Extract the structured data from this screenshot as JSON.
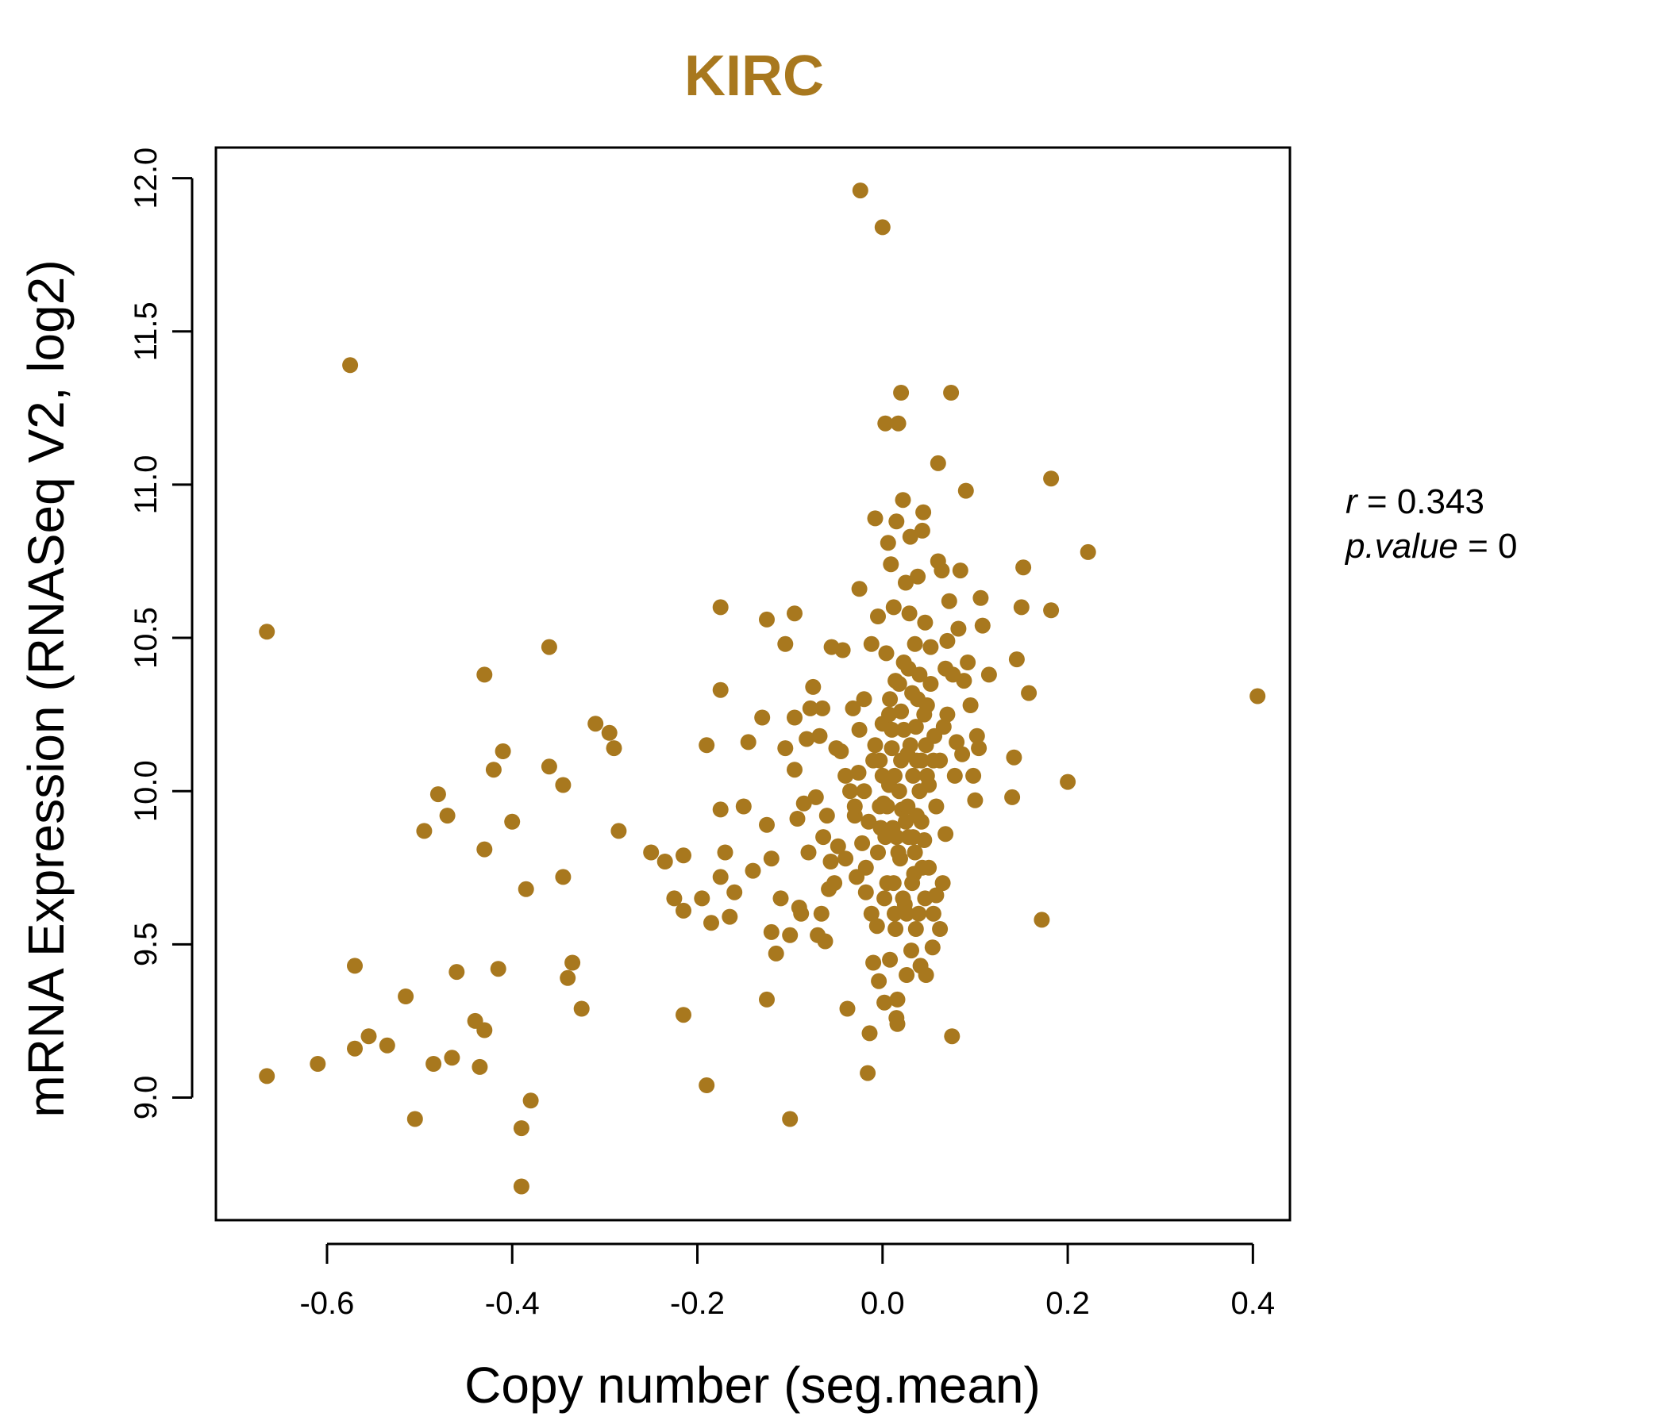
{
  "chart_data": {
    "type": "scatter",
    "title": "KIRC",
    "xlabel": "Copy number (seg.mean)",
    "ylabel": "mRNA Expression (RNASeq V2, log2)",
    "xlim": [
      -0.72,
      0.44
    ],
    "ylim": [
      8.6,
      12.1
    ],
    "x_ticks": [
      -0.6,
      -0.4,
      -0.2,
      0.0,
      0.2,
      0.4
    ],
    "x_tick_labels": [
      "-0.6",
      "-0.4",
      "-0.2",
      "0.0",
      "0.2",
      "0.4"
    ],
    "y_ticks": [
      9.0,
      9.5,
      10.0,
      10.5,
      11.0,
      11.5,
      12.0
    ],
    "y_tick_labels": [
      "9.0",
      "9.5",
      "10.0",
      "10.5",
      "11.0",
      "11.5",
      "12.0"
    ],
    "grid": false,
    "color": "#A8781E",
    "stats": {
      "r_label": "r",
      "r_value": "0.343",
      "p_label": "p.value",
      "p_value": "0"
    },
    "points": [
      [
        -0.665,
        10.52
      ],
      [
        -0.665,
        9.07
      ],
      [
        -0.61,
        9.11
      ],
      [
        -0.575,
        11.39
      ],
      [
        -0.57,
        9.43
      ],
      [
        -0.57,
        9.16
      ],
      [
        -0.555,
        9.2
      ],
      [
        -0.535,
        9.17
      ],
      [
        -0.515,
        9.33
      ],
      [
        -0.505,
        8.93
      ],
      [
        -0.495,
        9.87
      ],
      [
        -0.485,
        9.11
      ],
      [
        -0.48,
        9.99
      ],
      [
        -0.47,
        9.92
      ],
      [
        -0.465,
        9.13
      ],
      [
        -0.46,
        9.41
      ],
      [
        -0.44,
        9.25
      ],
      [
        -0.435,
        9.1
      ],
      [
        -0.43,
        10.38
      ],
      [
        -0.43,
        9.81
      ],
      [
        -0.43,
        9.22
      ],
      [
        -0.42,
        10.07
      ],
      [
        -0.415,
        9.42
      ],
      [
        -0.41,
        10.13
      ],
      [
        -0.4,
        9.9
      ],
      [
        -0.39,
        8.9
      ],
      [
        -0.39,
        8.71
      ],
      [
        -0.385,
        9.68
      ],
      [
        -0.38,
        8.99
      ],
      [
        -0.36,
        10.47
      ],
      [
        -0.36,
        10.08
      ],
      [
        -0.345,
        10.02
      ],
      [
        -0.345,
        9.72
      ],
      [
        -0.34,
        9.39
      ],
      [
        -0.335,
        9.44
      ],
      [
        -0.325,
        9.29
      ],
      [
        -0.31,
        10.22
      ],
      [
        -0.295,
        10.19
      ],
      [
        -0.29,
        10.14
      ],
      [
        -0.285,
        9.87
      ],
      [
        -0.25,
        9.8
      ],
      [
        -0.235,
        9.77
      ],
      [
        -0.225,
        9.65
      ],
      [
        -0.215,
        9.61
      ],
      [
        -0.215,
        9.79
      ],
      [
        -0.215,
        9.27
      ],
      [
        -0.195,
        9.65
      ],
      [
        -0.19,
        9.04
      ],
      [
        -0.19,
        10.15
      ],
      [
        -0.185,
        9.57
      ],
      [
        -0.175,
        10.6
      ],
      [
        -0.175,
        10.33
      ],
      [
        -0.175,
        9.94
      ],
      [
        -0.175,
        9.72
      ],
      [
        -0.17,
        9.8
      ],
      [
        -0.165,
        9.59
      ],
      [
        -0.16,
        9.67
      ],
      [
        -0.15,
        9.95
      ],
      [
        -0.145,
        10.16
      ],
      [
        -0.14,
        9.74
      ],
      [
        -0.13,
        10.24
      ],
      [
        -0.125,
        10.56
      ],
      [
        -0.125,
        9.89
      ],
      [
        -0.125,
        9.32
      ],
      [
        -0.12,
        9.78
      ],
      [
        -0.12,
        9.54
      ],
      [
        -0.115,
        9.47
      ],
      [
        -0.11,
        9.65
      ],
      [
        -0.105,
        10.14
      ],
      [
        -0.105,
        10.48
      ],
      [
        -0.1,
        9.53
      ],
      [
        -0.1,
        8.93
      ],
      [
        -0.095,
        10.58
      ],
      [
        -0.095,
        10.07
      ],
      [
        -0.095,
        10.24
      ],
      [
        -0.092,
        9.91
      ],
      [
        -0.09,
        9.62
      ],
      [
        -0.088,
        9.6
      ],
      [
        -0.085,
        9.96
      ],
      [
        -0.082,
        10.17
      ],
      [
        -0.08,
        9.8
      ],
      [
        -0.078,
        10.27
      ],
      [
        -0.075,
        10.34
      ],
      [
        -0.072,
        9.98
      ],
      [
        -0.07,
        9.53
      ],
      [
        -0.068,
        10.18
      ],
      [
        -0.066,
        9.6
      ],
      [
        -0.065,
        10.27
      ],
      [
        -0.064,
        9.85
      ],
      [
        -0.062,
        9.51
      ],
      [
        -0.06,
        9.92
      ],
      [
        -0.058,
        9.68
      ],
      [
        -0.056,
        9.77
      ],
      [
        -0.055,
        10.47
      ],
      [
        -0.052,
        9.7
      ],
      [
        -0.05,
        10.14
      ],
      [
        -0.048,
        9.82
      ],
      [
        -0.045,
        10.13
      ],
      [
        -0.043,
        10.46
      ],
      [
        -0.04,
        9.78
      ],
      [
        -0.038,
        9.29
      ],
      [
        -0.035,
        10.0
      ],
      [
        -0.032,
        10.27
      ],
      [
        -0.03,
        9.92
      ],
      [
        -0.028,
        9.72
      ],
      [
        -0.026,
        10.06
      ],
      [
        -0.025,
        10.66
      ],
      [
        -0.024,
        11.96
      ],
      [
        -0.022,
        9.83
      ],
      [
        -0.02,
        10.3
      ],
      [
        -0.018,
        9.67
      ],
      [
        -0.016,
        9.08
      ],
      [
        -0.014,
        9.21
      ],
      [
        -0.012,
        10.48
      ],
      [
        -0.01,
        9.44
      ],
      [
        -0.008,
        10.89
      ],
      [
        -0.006,
        9.56
      ],
      [
        -0.005,
        10.57
      ],
      [
        -0.004,
        9.38
      ],
      [
        -0.003,
        10.1
      ],
      [
        -0.002,
        9.88
      ],
      [
        0.0,
        11.84
      ],
      [
        0.0,
        10.22
      ],
      [
        0.001,
        9.96
      ],
      [
        0.002,
        9.31
      ],
      [
        0.003,
        11.2
      ],
      [
        0.004,
        10.45
      ],
      [
        0.005,
        9.7
      ],
      [
        0.006,
        10.81
      ],
      [
        0.007,
        10.02
      ],
      [
        0.008,
        9.45
      ],
      [
        0.009,
        10.74
      ],
      [
        0.01,
        10.14
      ],
      [
        0.011,
        9.88
      ],
      [
        0.012,
        10.6
      ],
      [
        0.013,
        9.6
      ],
      [
        0.014,
        10.36
      ],
      [
        0.015,
        10.88
      ],
      [
        0.015,
        9.26
      ],
      [
        0.016,
        9.32
      ],
      [
        0.016,
        9.24
      ],
      [
        0.017,
        11.2
      ],
      [
        0.018,
        10.0
      ],
      [
        0.019,
        9.78
      ],
      [
        0.02,
        11.3
      ],
      [
        0.02,
        10.26
      ],
      [
        0.021,
        9.94
      ],
      [
        0.022,
        10.95
      ],
      [
        0.023,
        10.42
      ],
      [
        0.024,
        9.63
      ],
      [
        0.025,
        10.68
      ],
      [
        0.026,
        9.4
      ],
      [
        0.027,
        10.12
      ],
      [
        0.028,
        9.85
      ],
      [
        0.029,
        10.58
      ],
      [
        0.03,
        10.83
      ],
      [
        0.031,
        9.48
      ],
      [
        0.032,
        10.32
      ],
      [
        0.033,
        10.05
      ],
      [
        0.034,
        9.73
      ],
      [
        0.035,
        10.48
      ],
      [
        0.036,
        10.21
      ],
      [
        0.037,
        9.92
      ],
      [
        0.038,
        10.7
      ],
      [
        0.039,
        9.6
      ],
      [
        0.04,
        10.38
      ],
      [
        0.041,
        9.43
      ],
      [
        0.042,
        10.1
      ],
      [
        0.043,
        10.85
      ],
      [
        0.044,
        10.91
      ],
      [
        0.045,
        9.84
      ],
      [
        0.046,
        10.55
      ],
      [
        0.047,
        9.4
      ],
      [
        0.048,
        10.28
      ],
      [
        0.05,
        10.02
      ],
      [
        0.052,
        10.47
      ],
      [
        0.054,
        9.49
      ],
      [
        0.056,
        10.18
      ],
      [
        0.058,
        9.66
      ],
      [
        0.06,
        11.07
      ],
      [
        0.06,
        10.75
      ],
      [
        0.062,
        9.55
      ],
      [
        0.064,
        10.72
      ],
      [
        0.066,
        10.21
      ],
      [
        0.068,
        9.86
      ],
      [
        0.07,
        10.49
      ],
      [
        0.072,
        10.62
      ],
      [
        0.074,
        11.3
      ],
      [
        0.075,
        9.2
      ],
      [
        0.076,
        10.38
      ],
      [
        0.078,
        10.05
      ],
      [
        0.08,
        10.16
      ],
      [
        0.082,
        10.53
      ],
      [
        0.084,
        10.72
      ],
      [
        0.086,
        10.12
      ],
      [
        0.088,
        10.36
      ],
      [
        0.09,
        10.98
      ],
      [
        0.092,
        10.42
      ],
      [
        0.095,
        10.28
      ],
      [
        0.098,
        10.05
      ],
      [
        0.1,
        9.97
      ],
      [
        0.102,
        10.18
      ],
      [
        0.104,
        10.14
      ],
      [
        0.106,
        10.63
      ],
      [
        0.108,
        10.54
      ],
      [
        0.115,
        10.38
      ],
      [
        0.14,
        9.98
      ],
      [
        0.142,
        10.11
      ],
      [
        0.145,
        10.43
      ],
      [
        0.15,
        10.6
      ],
      [
        0.152,
        10.73
      ],
      [
        0.158,
        10.32
      ],
      [
        0.172,
        9.58
      ],
      [
        0.182,
        11.02
      ],
      [
        0.182,
        10.59
      ],
      [
        0.2,
        10.03
      ],
      [
        0.222,
        10.78
      ],
      [
        0.405,
        10.31
      ],
      [
        -0.02,
        10.0
      ],
      [
        -0.015,
        9.9
      ],
      [
        -0.01,
        10.1
      ],
      [
        -0.005,
        9.8
      ],
      [
        0.0,
        10.05
      ],
      [
        0.005,
        9.95
      ],
      [
        0.01,
        10.2
      ],
      [
        0.015,
        9.85
      ],
      [
        0.02,
        10.1
      ],
      [
        0.025,
        9.9
      ],
      [
        0.03,
        10.15
      ],
      [
        0.035,
        9.8
      ],
      [
        0.04,
        10.0
      ],
      [
        0.045,
        10.25
      ],
      [
        0.05,
        9.75
      ],
      [
        0.055,
        10.1
      ],
      [
        -0.025,
        10.2
      ],
      [
        -0.018,
        9.75
      ],
      [
        0.008,
        10.3
      ],
      [
        0.012,
        9.7
      ],
      [
        0.018,
        10.35
      ],
      [
        0.022,
        9.65
      ],
      [
        0.028,
        10.4
      ],
      [
        0.032,
        9.7
      ],
      [
        0.038,
        10.3
      ],
      [
        0.042,
        9.9
      ],
      [
        0.048,
        10.05
      ],
      [
        0.052,
        10.35
      ],
      [
        0.058,
        9.95
      ],
      [
        0.062,
        10.1
      ],
      [
        -0.008,
        10.15
      ],
      [
        -0.003,
        9.95
      ],
      [
        0.003,
        9.85
      ],
      [
        0.007,
        10.25
      ],
      [
        0.013,
        10.05
      ],
      [
        0.017,
        9.8
      ],
      [
        0.023,
        10.2
      ],
      [
        0.027,
        9.95
      ],
      [
        0.033,
        9.85
      ],
      [
        0.037,
        10.1
      ],
      [
        0.043,
        9.75
      ],
      [
        0.047,
        10.15
      ],
      [
        -0.012,
        9.6
      ],
      [
        0.002,
        9.65
      ],
      [
        0.014,
        9.55
      ],
      [
        0.026,
        9.6
      ],
      [
        0.036,
        9.55
      ],
      [
        0.046,
        9.65
      ],
      [
        -0.03,
        9.95
      ],
      [
        0.065,
        9.7
      ],
      [
        0.07,
        10.25
      ],
      [
        -0.04,
        10.05
      ],
      [
        0.068,
        10.4
      ],
      [
        0.055,
        9.6
      ]
    ]
  }
}
